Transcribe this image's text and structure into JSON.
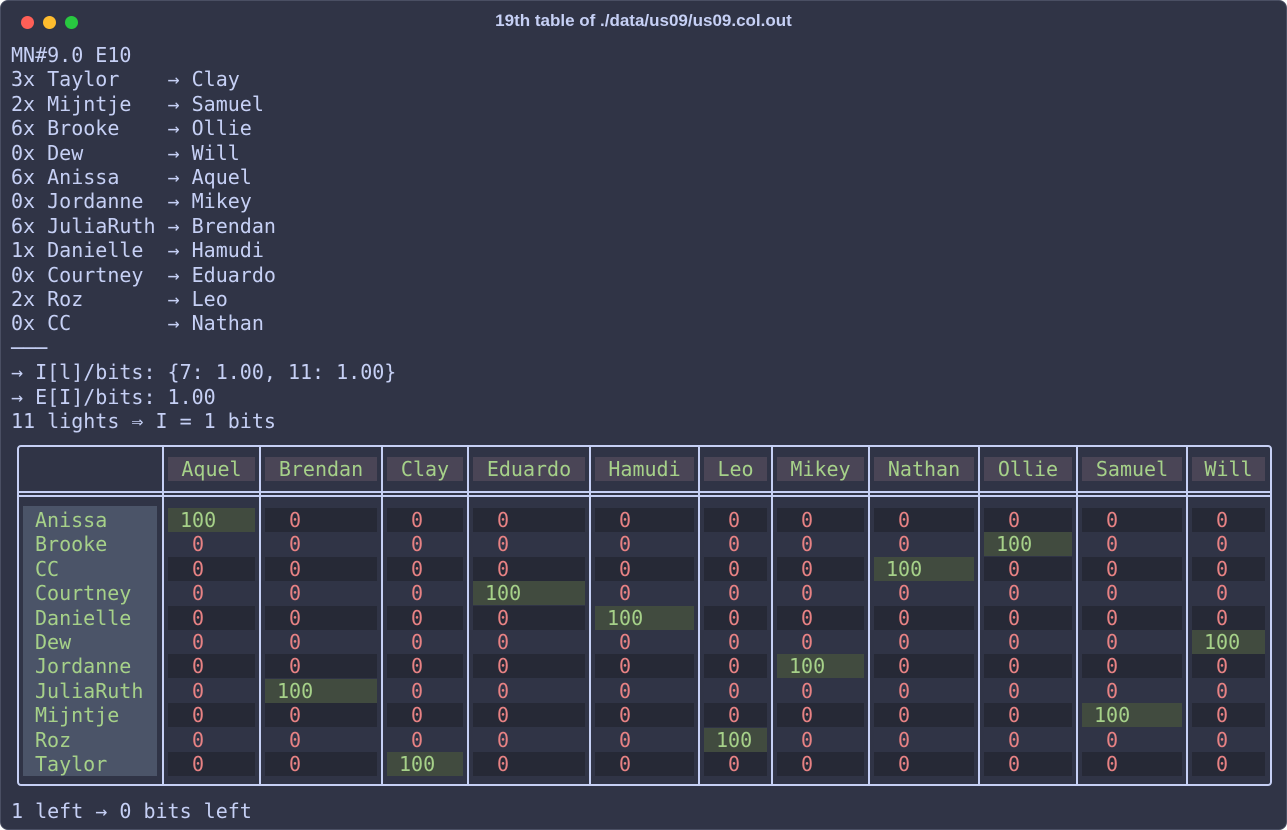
{
  "window": {
    "title": "19th table of ./data/us09/us09.col.out"
  },
  "lines": [
    "MN#9.0 E10",
    "3x Taylor    → Clay",
    "2x Mijntje   → Samuel",
    "6x Brooke    → Ollie",
    "0x Dew       → Will",
    "6x Anissa    → Aquel",
    "0x Jordanne  → Mikey",
    "6x JuliaRuth → Brendan",
    "1x Danielle  → Hamudi",
    "0x Courtney  → Eduardo",
    "2x Roz       → Leo",
    "0x CC        → Nathan",
    "───",
    "→ I[l]/bits: {7: 1.00, 11: 1.00}",
    "→ E[I]/bits: 1.00",
    "11 lights ⇒ I = 1 bits"
  ],
  "table": {
    "columns": [
      "Aquel",
      "Brendan",
      "Clay",
      "Eduardo",
      "Hamudi",
      "Leo",
      "Mikey",
      "Nathan",
      "Ollie",
      "Samuel",
      "Will"
    ],
    "rows": [
      {
        "name": "Anissa",
        "cells": [
          100,
          0,
          0,
          0,
          0,
          0,
          0,
          0,
          0,
          0,
          0
        ]
      },
      {
        "name": "Brooke",
        "cells": [
          0,
          0,
          0,
          0,
          0,
          0,
          0,
          0,
          100,
          0,
          0
        ]
      },
      {
        "name": "CC",
        "cells": [
          0,
          0,
          0,
          0,
          0,
          0,
          0,
          100,
          0,
          0,
          0
        ]
      },
      {
        "name": "Courtney",
        "cells": [
          0,
          0,
          0,
          100,
          0,
          0,
          0,
          0,
          0,
          0,
          0
        ]
      },
      {
        "name": "Danielle",
        "cells": [
          0,
          0,
          0,
          0,
          100,
          0,
          0,
          0,
          0,
          0,
          0
        ]
      },
      {
        "name": "Dew",
        "cells": [
          0,
          0,
          0,
          0,
          0,
          0,
          0,
          0,
          0,
          0,
          100
        ]
      },
      {
        "name": "Jordanne",
        "cells": [
          0,
          0,
          0,
          0,
          0,
          0,
          100,
          0,
          0,
          0,
          0
        ]
      },
      {
        "name": "JuliaRuth",
        "cells": [
          0,
          100,
          0,
          0,
          0,
          0,
          0,
          0,
          0,
          0,
          0
        ]
      },
      {
        "name": "Mijntje",
        "cells": [
          0,
          0,
          0,
          0,
          0,
          0,
          0,
          0,
          0,
          100,
          0
        ]
      },
      {
        "name": "Roz",
        "cells": [
          0,
          0,
          0,
          0,
          0,
          100,
          0,
          0,
          0,
          0,
          0
        ]
      },
      {
        "name": "Taylor",
        "cells": [
          0,
          0,
          100,
          0,
          0,
          0,
          0,
          0,
          0,
          0,
          0
        ]
      }
    ]
  },
  "footer": "1 left → 0 bits left"
}
